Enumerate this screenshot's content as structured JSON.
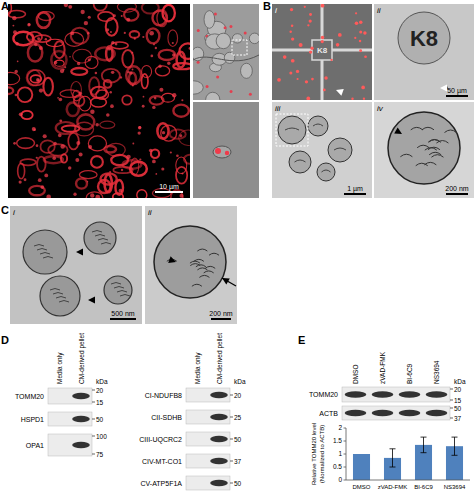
{
  "panels": {
    "A": {
      "label": "A",
      "scale_bar": "10 µm"
    },
    "B": {
      "label": "B",
      "subpanels": [
        {
          "label": "i",
          "text": "K8"
        },
        {
          "label": "ii",
          "text": "K8",
          "scale_bar": "50 µm"
        },
        {
          "label": "iii",
          "scale_bar": "1 µm"
        },
        {
          "label": "iv",
          "scale_bar": "200 nm"
        }
      ]
    },
    "C": {
      "label": "C",
      "subpanels": [
        {
          "label": "i",
          "scale_bar": "500 nm"
        },
        {
          "label": "ii",
          "scale_bar": "200 nm"
        }
      ]
    },
    "D": {
      "label": "D",
      "unit": "kDa",
      "lanes": [
        "Media only",
        "CM-derived pellet"
      ],
      "blots": [
        [
          {
            "name": "TOMM20",
            "markers": [
              20,
              15
            ]
          },
          {
            "name": "HSPD1",
            "markers": [
              50
            ]
          },
          {
            "name": "OPA1",
            "markers": [
              100,
              75
            ]
          }
        ],
        [
          {
            "name": "CI-NDUFB8",
            "markers": [
              20
            ]
          },
          {
            "name": "CII-SDHB",
            "markers": [
              25
            ]
          },
          {
            "name": "CIII-UQCRC2",
            "markers": [
              50
            ]
          },
          {
            "name": "CIV-MT-CO1",
            "markers": [
              37
            ]
          },
          {
            "name": "CV-ATP5F1A",
            "markers": [
              50
            ]
          }
        ]
      ]
    },
    "E": {
      "label": "E",
      "unit": "kDa",
      "lanes": [
        "DMSO",
        "zVAD-FMK",
        "BI-6C9",
        "NS3694"
      ],
      "blots": [
        {
          "name": "TOMM20",
          "markers": [
            20,
            15
          ]
        },
        {
          "name": "ACTB",
          "markers": [
            50,
            37
          ]
        }
      ]
    }
  },
  "chart_data": {
    "type": "bar",
    "y_label": [
      "Relative TOMM20 level",
      "(Normalized to ACTB)"
    ],
    "categories": [
      "DMSO",
      "zVAD-FMK",
      "BI-6C9",
      "NS3694"
    ],
    "values": [
      1,
      0.85,
      1.35,
      1.3
    ],
    "errors": [
      null,
      0.35,
      0.3,
      0.35
    ],
    "color": "#4f81bd",
    "ylim": [
      0,
      2
    ],
    "yticks": [
      0,
      0.5,
      1,
      1.5,
      2
    ]
  }
}
